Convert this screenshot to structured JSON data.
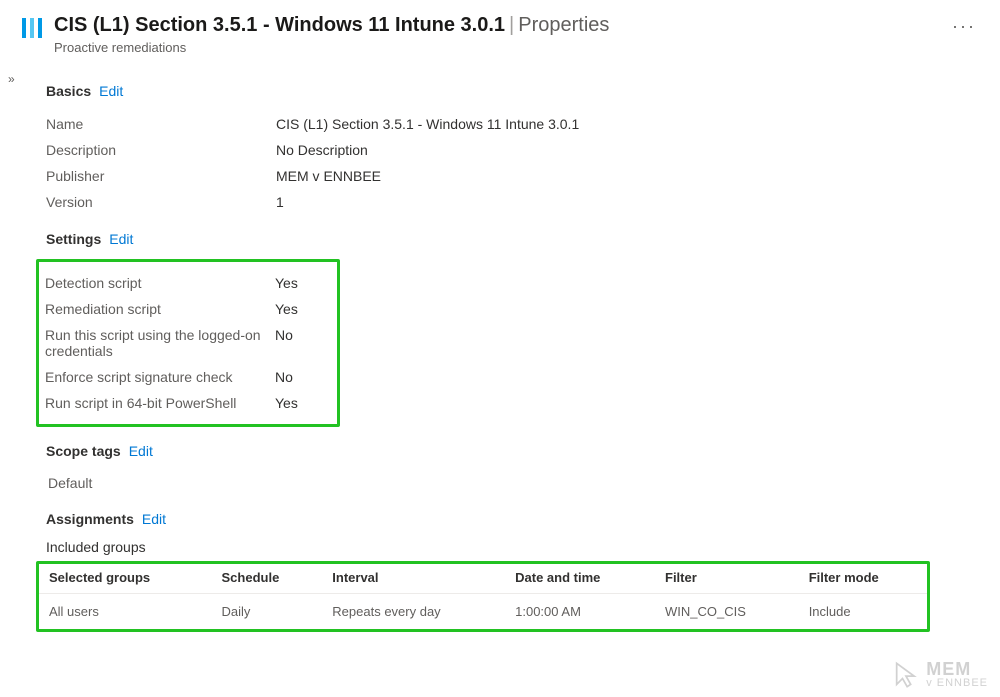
{
  "header": {
    "title_main": "CIS (L1) Section 3.5.1 - Windows 11 Intune 3.0.1",
    "title_sub": "Properties",
    "subtitle": "Proactive remediations"
  },
  "sections": {
    "basics": {
      "label": "Basics",
      "edit": "Edit",
      "rows": [
        {
          "k": "Name",
          "v": "CIS (L1) Section 3.5.1 - Windows 11 Intune 3.0.1"
        },
        {
          "k": "Description",
          "v": "No Description"
        },
        {
          "k": "Publisher",
          "v": "MEM v ENNBEE"
        },
        {
          "k": "Version",
          "v": "1"
        }
      ]
    },
    "settings": {
      "label": "Settings",
      "edit": "Edit",
      "rows": [
        {
          "k": "Detection script",
          "v": "Yes"
        },
        {
          "k": "Remediation script",
          "v": "Yes"
        },
        {
          "k": "Run this script using the logged-on credentials",
          "v": "No"
        },
        {
          "k": "Enforce script signature check",
          "v": "No"
        },
        {
          "k": "Run script in 64-bit PowerShell",
          "v": "Yes"
        }
      ]
    },
    "scope": {
      "label": "Scope tags",
      "edit": "Edit",
      "value": "Default"
    },
    "assignments": {
      "label": "Assignments",
      "edit": "Edit",
      "included_label": "Included groups",
      "columns": [
        "Selected groups",
        "Schedule",
        "Interval",
        "Date and time",
        "Filter",
        "Filter mode"
      ],
      "rows": [
        [
          "All users",
          "Daily",
          "Repeats every day",
          "1:00:00 AM",
          "WIN_CO_CIS",
          "Include"
        ]
      ]
    }
  },
  "watermark": {
    "line1": "MEM",
    "line2": "v ENNBEE"
  },
  "colors": {
    "link": "#0078d4",
    "highlight_border": "#22c222",
    "icon_primary": "#0099e6"
  }
}
